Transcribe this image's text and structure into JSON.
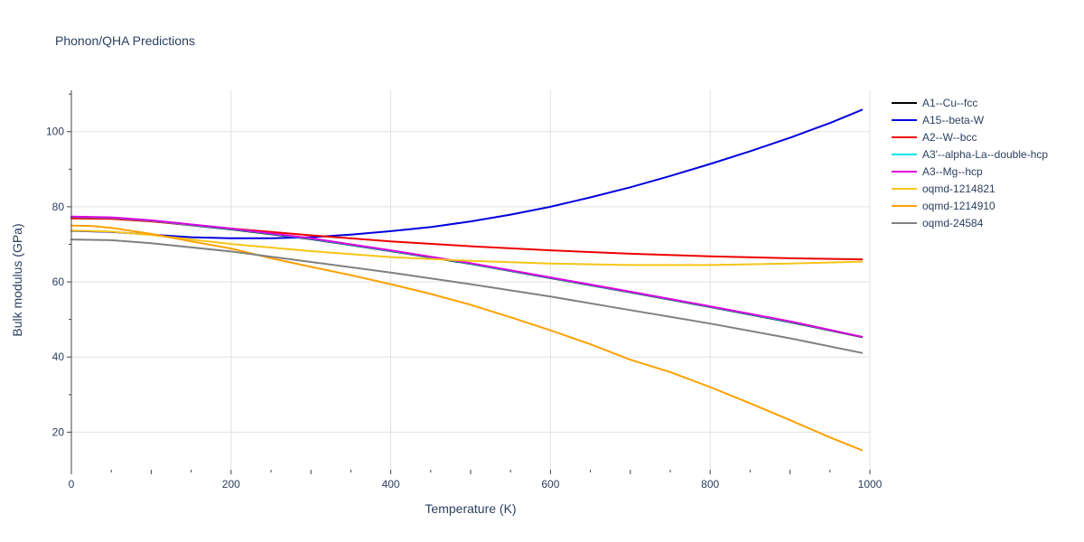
{
  "chart_data": {
    "type": "line",
    "title": "Phonon/QHA Predictions",
    "xlabel": "Temperature (K)",
    "ylabel": "Bulk modulus (GPa)",
    "xlim": [
      0,
      1000
    ],
    "ylim": [
      10,
      111
    ],
    "xticks": [
      0,
      200,
      400,
      600,
      800,
      1000
    ],
    "yticks": [
      20,
      40,
      60,
      80,
      100
    ],
    "grid": true,
    "legend_position": "right",
    "series": [
      {
        "name": "A1--Cu--fcc",
        "color": "#000000",
        "x": [
          0,
          50,
          100,
          200,
          300,
          400,
          500,
          600,
          700,
          800,
          900,
          990
        ],
        "y": [
          77.2,
          77.0,
          76.2,
          74.0,
          71.4,
          68.2,
          64.8,
          61.0,
          57.2,
          53.3,
          49.3,
          45.3
        ]
      },
      {
        "name": "A15--beta-W",
        "color": "#0000dd",
        "x": [
          0,
          50,
          100,
          150,
          200,
          250,
          300,
          350,
          400,
          450,
          500,
          550,
          600,
          650,
          700,
          750,
          800,
          850,
          900,
          950,
          990
        ],
        "y": [
          73.6,
          73.3,
          72.6,
          71.9,
          71.6,
          71.6,
          71.9,
          72.6,
          73.5,
          74.6,
          76.1,
          77.9,
          80.0,
          82.5,
          85.2,
          88.2,
          91.4,
          94.8,
          98.4,
          102.3,
          105.8
        ]
      },
      {
        "name": "A2--W--bcc",
        "color": "#ee0000",
        "x": [
          0,
          50,
          100,
          200,
          300,
          400,
          500,
          600,
          700,
          800,
          900,
          990
        ],
        "y": [
          76.9,
          76.8,
          76.1,
          74.2,
          72.4,
          70.8,
          69.5,
          68.4,
          67.5,
          66.8,
          66.3,
          66.0
        ]
      },
      {
        "name": "A3'--alpha-La--double-hcp",
        "color": "#00e5e5",
        "x": [
          0,
          50,
          100,
          200,
          300,
          400,
          500,
          600,
          700,
          800,
          900,
          990
        ],
        "y": [
          77.3,
          77.1,
          76.3,
          74.1,
          71.5,
          68.3,
          64.9,
          61.1,
          57.3,
          53.4,
          49.4,
          45.4
        ]
      },
      {
        "name": "A3--Mg--hcp",
        "color": "#dd00dd",
        "x": [
          0,
          50,
          100,
          200,
          300,
          400,
          500,
          600,
          700,
          800,
          900,
          990
        ],
        "y": [
          77.4,
          77.2,
          76.4,
          74.2,
          71.6,
          68.4,
          65.0,
          61.2,
          57.4,
          53.5,
          49.5,
          45.4
        ]
      },
      {
        "name": "oqmd-1214821",
        "color": "#f5c518",
        "x": [
          0,
          50,
          100,
          200,
          300,
          400,
          500,
          600,
          700,
          800,
          900,
          990
        ],
        "y": [
          73.7,
          73.4,
          72.5,
          70.1,
          68.2,
          66.6,
          65.6,
          64.9,
          64.5,
          64.5,
          64.9,
          65.4
        ]
      },
      {
        "name": "oqmd-1214910",
        "color": "#ffa000",
        "x": [
          0,
          25,
          50,
          100,
          150,
          200,
          250,
          300,
          350,
          400,
          450,
          500,
          550,
          600,
          650,
          700,
          750,
          800,
          850,
          900,
          950,
          990
        ],
        "y": [
          75.0,
          74.9,
          74.4,
          72.8,
          70.8,
          68.9,
          66.3,
          64.0,
          61.8,
          59.4,
          56.8,
          53.9,
          50.6,
          47.1,
          43.4,
          39.3,
          36.0,
          32.0,
          27.7,
          23.2,
          18.6,
          15.2
        ]
      },
      {
        "name": "oqmd-24584",
        "color": "#808080",
        "x": [
          0,
          50,
          100,
          200,
          300,
          400,
          500,
          600,
          700,
          800,
          900,
          990
        ],
        "y": [
          71.3,
          71.1,
          70.3,
          68.1,
          65.3,
          62.5,
          59.4,
          56.1,
          52.5,
          48.9,
          45.0,
          41.1
        ]
      }
    ]
  }
}
